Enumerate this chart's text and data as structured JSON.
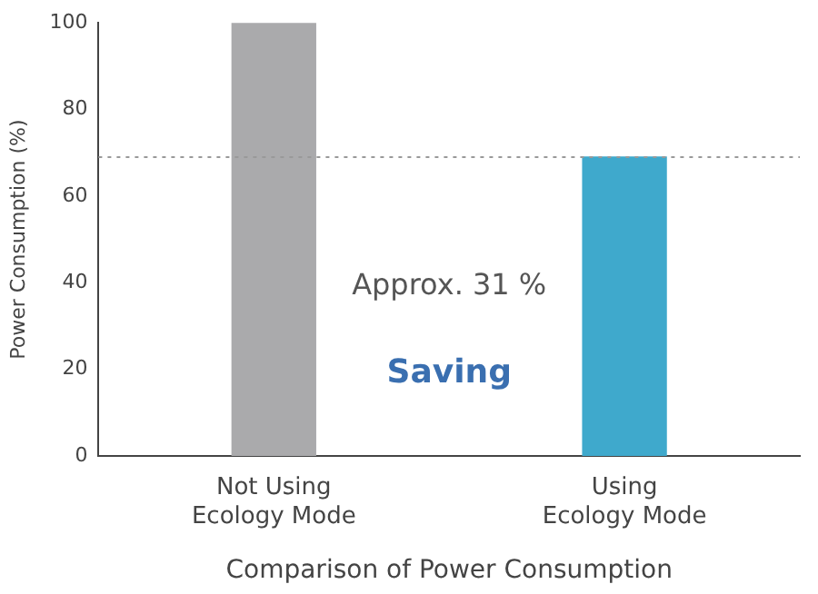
{
  "chart_data": {
    "type": "bar",
    "xlabel": "Comparison of Power Consumption",
    "ylabel": "Power Consumption (%)",
    "categories": [
      "Not Using Ecology Mode",
      "Using Ecology Mode"
    ],
    "values": [
      100,
      69
    ],
    "colors": [
      "#aaaaac",
      "#3fa9cc"
    ],
    "ylim": [
      0,
      100
    ],
    "yticks": [
      0,
      20,
      40,
      60,
      80,
      100
    ],
    "grid": false,
    "legend": false,
    "ref_lines": [
      {
        "axis": "y",
        "value": 69,
        "color": "#999999",
        "line_style": "dotted"
      }
    ],
    "annotations": [
      "Approx. 31 %",
      "Saving"
    ]
  }
}
